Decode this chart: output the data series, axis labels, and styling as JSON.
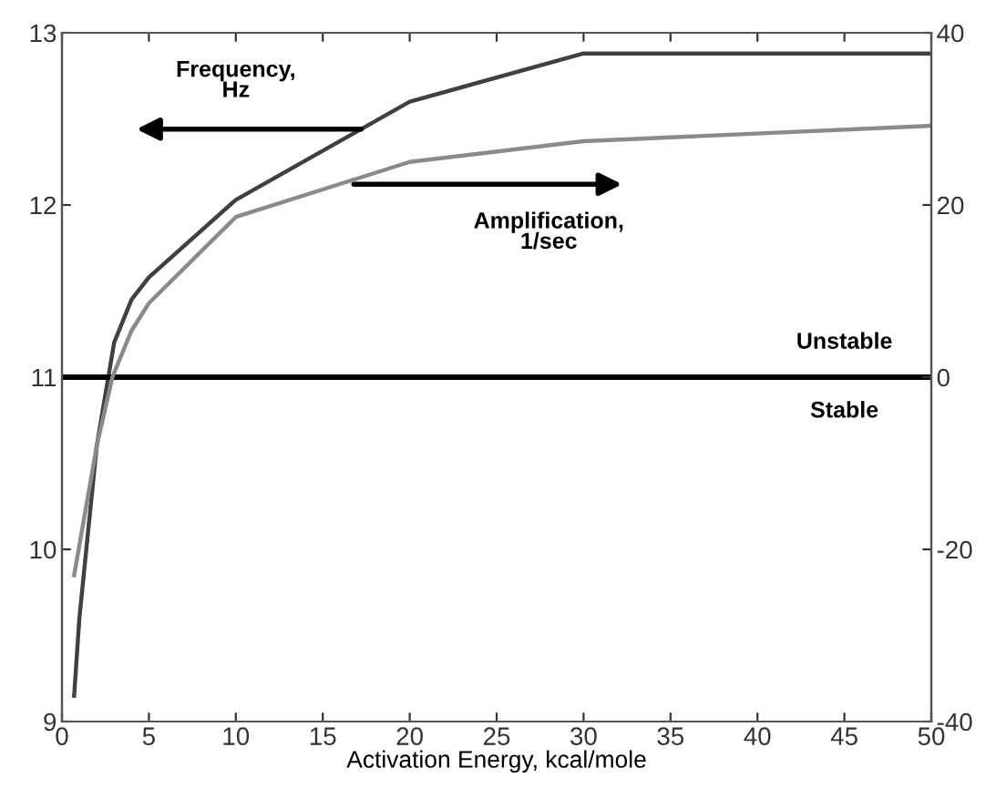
{
  "chart_data": {
    "type": "line",
    "xlabel": "Activation Energy, kcal/mole",
    "xlim": [
      0,
      50
    ],
    "xticks": [
      0,
      5,
      10,
      15,
      20,
      25,
      30,
      35,
      40,
      45,
      50
    ],
    "ylim": [
      9,
      13
    ],
    "yticks": [
      9,
      10,
      11,
      12,
      13
    ],
    "y2lim": [
      -40,
      40
    ],
    "y2ticks": [
      -40,
      -20,
      0,
      20,
      40
    ],
    "series": [
      {
        "color": "#404040",
        "x": [
          0.7,
          1,
          2,
          3,
          4,
          5,
          10,
          20,
          30,
          50
        ],
        "values": [
          9.15,
          9.6,
          10.6,
          11.2,
          11.45,
          11.58,
          12.03,
          12.6,
          12.88,
          12.88
        ]
      },
      {
        "color": "#8a8a8a",
        "axis": "y2",
        "x": [
          0.7,
          2,
          2.9,
          4,
          5,
          10,
          20,
          30,
          50
        ],
        "values": [
          -23,
          -8,
          0,
          5.4,
          8.6,
          18.6,
          25,
          27.4,
          29.2
        ]
      }
    ],
    "ref_lines": [
      {
        "axis": "y",
        "value": 11,
        "color": "#000000"
      }
    ],
    "annotations": [
      "Frequency,\nHz",
      "Amplification,\n1/sec",
      "Unstable",
      "Stable"
    ],
    "grid": false,
    "legend": false
  }
}
